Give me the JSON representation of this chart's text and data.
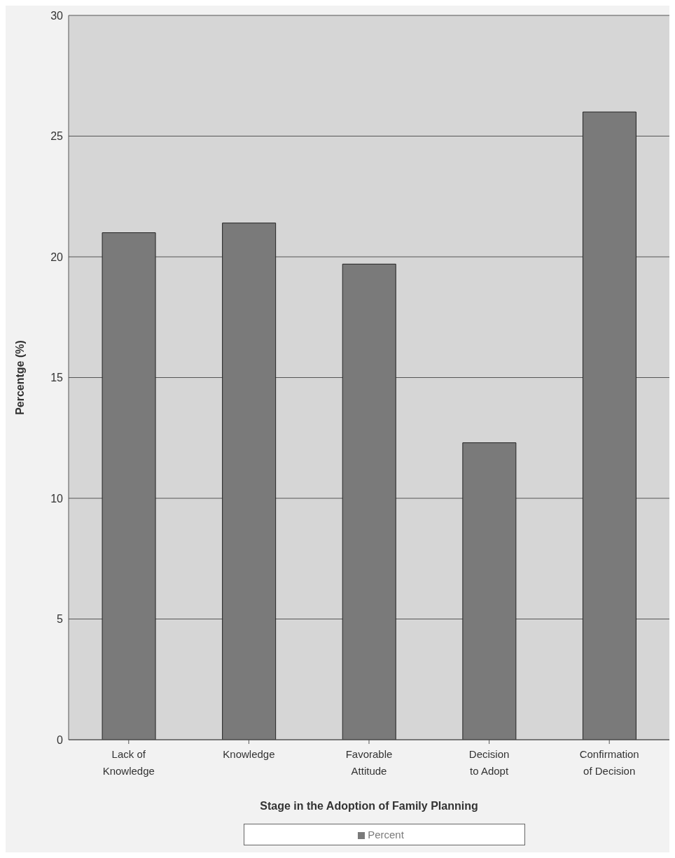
{
  "chart_data": {
    "type": "bar",
    "xlabel": "Stage in the Adoption of Family Planning",
    "ylabel": "Percentge (%)",
    "categories": [
      "Lack of Knowledge",
      "Knowledge",
      "Favorable Attitude",
      "Decision to Adopt",
      "Confirmation of Decision"
    ],
    "series": [
      {
        "name": "Percent",
        "color": "#7a7a7a",
        "values": [
          21.0,
          21.4,
          19.7,
          12.3,
          26.0
        ]
      }
    ],
    "ylim": [
      0,
      30
    ],
    "yticks": [
      0,
      5,
      10,
      15,
      20,
      25,
      30
    ],
    "grid": "y",
    "legend": "bottom"
  }
}
